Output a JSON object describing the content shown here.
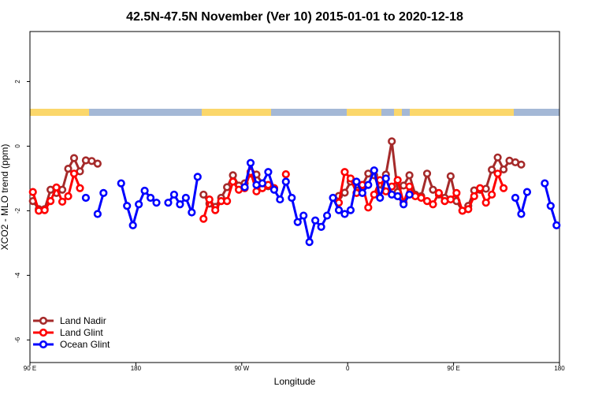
{
  "chart_data": {
    "type": "line",
    "title": "42.5N-47.5N November (Ver 10)   2015-01-01 to 2020-12-18",
    "xlabel": "Longitude",
    "ylabel": "XCO2 - MLO trend (ppm)",
    "x": [
      92.5,
      97.5,
      102.5,
      107.5,
      112.5,
      117.5,
      122.5,
      127.5,
      132.5,
      137.5,
      142.5,
      147.5,
      152.5,
      157.5,
      162.5,
      167.5,
      172.5,
      177.5,
      182.5,
      187.5,
      192.5,
      197.5,
      202.5,
      207.5,
      212.5,
      217.5,
      222.5,
      227.5,
      232.5,
      237.5,
      242.5,
      247.5,
      252.5,
      257.5,
      262.5,
      267.5,
      272.5,
      277.5,
      282.5,
      287.5,
      292.5,
      297.5,
      302.5,
      307.5,
      312.5,
      317.5,
      322.5,
      327.5,
      332.5,
      337.5,
      342.5,
      347.5,
      352.5,
      357.5,
      362.5,
      367.5,
      372.5,
      377.5,
      382.5,
      387.5,
      392.5,
      397.5,
      402.5,
      407.5,
      412.5,
      417.5,
      422.5,
      427.5,
      432.5,
      437.5,
      442.5,
      447.5,
      452.5,
      457.5,
      462.5,
      467.5,
      472.5,
      477.5,
      482.5,
      487.5,
      492.5,
      497.5,
      502.5,
      507.5,
      512.5,
      517.5,
      522.5,
      527.5,
      532.5,
      537.5
    ],
    "series": [
      {
        "name": "Land Nadir",
        "color": "#a52a2a",
        "values": [
          -1.7,
          -1.95,
          -1.95,
          -1.35,
          -1.45,
          -1.35,
          -0.7,
          -0.37,
          -0.78,
          -0.44,
          -0.46,
          -0.54,
          null,
          null,
          null,
          null,
          null,
          null,
          null,
          null,
          null,
          null,
          null,
          null,
          null,
          null,
          null,
          null,
          null,
          -1.5,
          -1.78,
          -1.88,
          -1.6,
          -1.27,
          -0.9,
          -1.22,
          -1.15,
          -0.85,
          -0.88,
          -1.15,
          -1.24,
          -1.3,
          null,
          null,
          null,
          null,
          null,
          null,
          null,
          null,
          null,
          null,
          -1.54,
          -1.44,
          -1.1,
          -1.2,
          -1.22,
          -0.85,
          -0.9,
          -1.37,
          -0.88,
          0.15,
          -1.42,
          -1.22,
          -0.9,
          -1.5,
          -1.55,
          -0.85,
          -1.35,
          -1.5,
          -1.6,
          -0.93,
          -1.7,
          -2.0,
          -1.85,
          -1.37,
          -1.35,
          -1.32,
          -0.73,
          -0.35,
          -0.72,
          -0.45,
          -0.5,
          -0.57,
          null,
          null,
          null,
          null,
          null,
          null
        ]
      },
      {
        "name": "Land Glint",
        "color": "#ff0000",
        "values": [
          -1.42,
          -2.0,
          -1.98,
          -1.7,
          -1.28,
          -1.72,
          -1.55,
          -0.85,
          -1.3,
          null,
          null,
          null,
          null,
          null,
          null,
          null,
          null,
          null,
          null,
          null,
          null,
          null,
          null,
          null,
          null,
          null,
          null,
          null,
          null,
          -2.25,
          -1.65,
          -1.98,
          -1.7,
          -1.7,
          -1.1,
          -1.35,
          -1.3,
          -0.8,
          -1.4,
          -1.3,
          -1.2,
          -1.3,
          null,
          -0.87,
          null,
          null,
          null,
          null,
          null,
          null,
          null,
          null,
          -1.75,
          -0.8,
          -1.0,
          -1.45,
          -1.2,
          -1.9,
          -1.5,
          -1.05,
          -1.4,
          -1.25,
          -1.05,
          -1.75,
          -1.25,
          -1.55,
          -1.6,
          -1.7,
          -1.8,
          -1.45,
          -1.7,
          -1.65,
          -1.45,
          -2.0,
          -1.95,
          -1.55,
          -1.3,
          -1.75,
          -1.5,
          -0.85,
          -1.3,
          null,
          null,
          null,
          null,
          null,
          null,
          null,
          null,
          null
        ]
      },
      {
        "name": "Ocean Glint",
        "color": "#0000ff",
        "values": [
          null,
          null,
          null,
          null,
          null,
          null,
          null,
          null,
          null,
          -1.6,
          null,
          -2.1,
          -1.45,
          null,
          null,
          -1.15,
          -1.85,
          -2.45,
          -1.8,
          -1.38,
          -1.6,
          -1.75,
          null,
          -1.75,
          -1.5,
          -1.8,
          -1.6,
          -2.05,
          -0.95,
          null,
          null,
          null,
          null,
          null,
          null,
          null,
          -1.27,
          -0.52,
          -1.2,
          -1.15,
          -0.8,
          -1.35,
          -1.65,
          -1.1,
          -1.6,
          -2.35,
          -2.15,
          -2.97,
          -2.3,
          -2.5,
          -2.15,
          -1.6,
          -1.98,
          -2.1,
          -1.98,
          -1.1,
          -1.45,
          -1.2,
          -0.75,
          -1.6,
          -1.0,
          -1.5,
          -1.55,
          -1.8,
          -1.5,
          null,
          null,
          null,
          null,
          null,
          null,
          null,
          null,
          null,
          null,
          null,
          null,
          null,
          null,
          null,
          null,
          null,
          -1.6,
          -2.1,
          -1.42,
          null,
          null,
          -1.15,
          -1.85,
          -2.45
        ]
      }
    ],
    "xlim": [
      90,
      540
    ],
    "xticks": [
      {
        "value": 90,
        "label": "90 E"
      },
      180,
      {
        "value": 270,
        "label": "90 W"
      },
      {
        "value": 360,
        "label": "0"
      },
      {
        "value": 450,
        "label": "90 E"
      },
      {
        "value": 540,
        "label": "180"
      }
    ],
    "ylim": [
      -6.7,
      3.55
    ],
    "yticks": [
      -6,
      -4,
      -2,
      0,
      2
    ],
    "legend": "bottom-left"
  }
}
